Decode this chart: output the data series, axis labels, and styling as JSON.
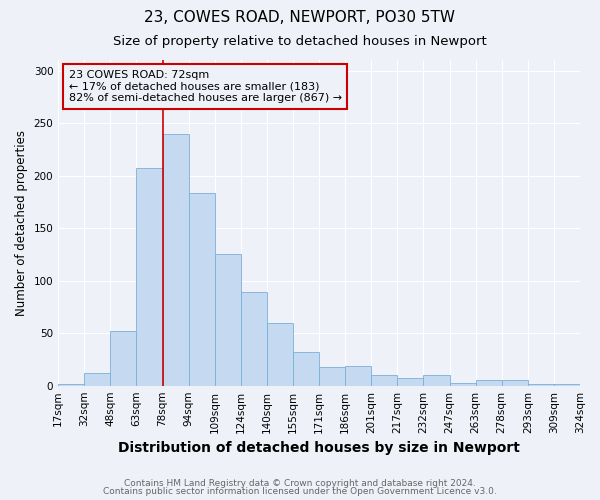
{
  "title1": "23, COWES ROAD, NEWPORT, PO30 5TW",
  "title2": "Size of property relative to detached houses in Newport",
  "xlabel": "Distribution of detached houses by size in Newport",
  "ylabel": "Number of detached properties",
  "categories": [
    "17sqm",
    "32sqm",
    "48sqm",
    "63sqm",
    "78sqm",
    "94sqm",
    "109sqm",
    "124sqm",
    "140sqm",
    "155sqm",
    "171sqm",
    "186sqm",
    "201sqm",
    "217sqm",
    "232sqm",
    "247sqm",
    "263sqm",
    "278sqm",
    "293sqm",
    "309sqm",
    "324sqm"
  ],
  "bar_heights": [
    2,
    12,
    52,
    207,
    240,
    183,
    125,
    89,
    60,
    32,
    18,
    19,
    10,
    7,
    10,
    3,
    5,
    5,
    2,
    2
  ],
  "bar_color": "#c5d9f0",
  "bar_edge_color": "#7ab0d8",
  "property_label": "23 COWES ROAD: 72sqm",
  "annotation_line1": "← 17% of detached houses are smaller (183)",
  "annotation_line2": "82% of semi-detached houses are larger (867) →",
  "vline_color": "#cc0000",
  "vline_x": 4.0,
  "ylim": [
    0,
    310
  ],
  "yticks": [
    0,
    50,
    100,
    150,
    200,
    250,
    300
  ],
  "background_color": "#eef2f8",
  "grid_color": "#ffffff",
  "footnote1": "Contains HM Land Registry data © Crown copyright and database right 2024.",
  "footnote2": "Contains public sector information licensed under the Open Government Licence v3.0.",
  "title1_fontsize": 11,
  "title2_fontsize": 9.5,
  "xlabel_fontsize": 10,
  "ylabel_fontsize": 8.5,
  "tick_fontsize": 7.5,
  "annot_fontsize": 8,
  "footnote_fontsize": 6.5
}
